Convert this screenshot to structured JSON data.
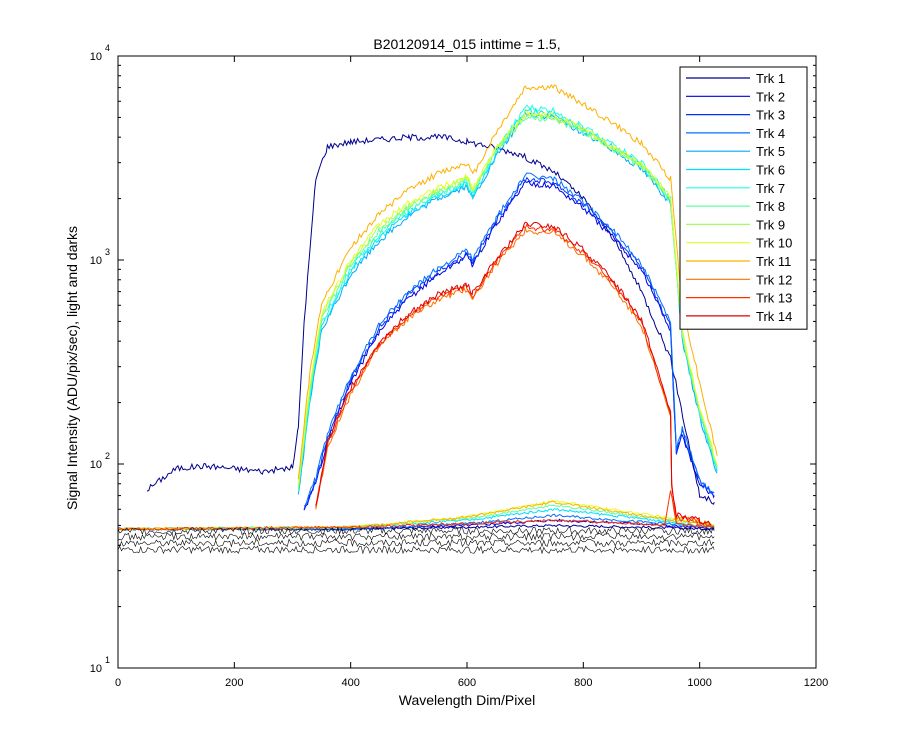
{
  "chart_data": {
    "type": "line",
    "title": "B20120914_015 inttime = 1.5,",
    "xlabel": "Wavelength Dim/Pixel",
    "ylabel": "Signal Intensity (ADU/pix/sec), light and darks",
    "xlim": [
      0,
      1200
    ],
    "ylim": [
      10,
      10000
    ],
    "yscale": "log",
    "grid": false,
    "legend_position": "top-right",
    "xticks": [
      "0",
      "200",
      "400",
      "600",
      "800",
      "1000",
      "1200"
    ],
    "yticks": [
      {
        "base": "10",
        "exp": "1"
      },
      {
        "base": "10",
        "exp": "2"
      },
      {
        "base": "10",
        "exp": "3"
      },
      {
        "base": "10",
        "exp": "4"
      }
    ],
    "series": [
      {
        "name": "Trk 1",
        "color": "#00008f",
        "x": [
          0,
          45,
          50,
          100,
          150,
          200,
          250,
          300,
          310,
          320,
          340,
          360,
          400,
          500,
          560,
          600,
          640,
          690,
          750,
          800,
          850,
          900,
          950,
          1000,
          1025
        ],
        "y": [
          null,
          null,
          75,
          95,
          98,
          95,
          92,
          96,
          150,
          500,
          2500,
          3600,
          3800,
          4000,
          4000,
          3800,
          3600,
          3300,
          2700,
          2000,
          1300,
          700,
          330,
          70,
          65
        ]
      },
      {
        "name": "Trk 2",
        "color": "#0000df",
        "x": [
          0,
          300,
          320,
          340,
          360,
          400,
          450,
          500,
          550,
          600,
          610,
          650,
          700,
          750,
          800,
          850,
          900,
          950,
          960,
          970,
          1000,
          1025
        ],
        "y": [
          null,
          null,
          60,
          80,
          130,
          250,
          450,
          650,
          850,
          1050,
          950,
          1500,
          2400,
          2300,
          1800,
          1300,
          900,
          450,
          110,
          140,
          80,
          70
        ]
      },
      {
        "name": "Trk 3",
        "color": "#0030ff",
        "x": [
          0,
          300,
          320,
          340,
          360,
          400,
          450,
          500,
          550,
          600,
          610,
          650,
          700,
          750,
          800,
          850,
          900,
          950,
          960,
          970,
          1000,
          1025
        ],
        "y": [
          null,
          null,
          60,
          82,
          135,
          260,
          470,
          680,
          880,
          1080,
          980,
          1550,
          2500,
          2400,
          1870,
          1350,
          930,
          470,
          115,
          145,
          82,
          70
        ]
      },
      {
        "name": "Trk 4",
        "color": "#0070ff",
        "x": [
          0,
          300,
          320,
          340,
          360,
          400,
          450,
          500,
          550,
          600,
          610,
          650,
          700,
          750,
          800,
          850,
          900,
          950,
          960,
          970,
          1000,
          1025
        ],
        "y": [
          null,
          null,
          62,
          85,
          140,
          270,
          490,
          700,
          910,
          1120,
          1010,
          1600,
          2600,
          2500,
          1940,
          1400,
          960,
          490,
          118,
          148,
          84,
          72
        ]
      },
      {
        "name": "Trk 5",
        "color": "#00a8ff",
        "x": [
          0,
          300,
          310,
          330,
          350,
          400,
          450,
          500,
          550,
          600,
          610,
          650,
          700,
          750,
          800,
          850,
          900,
          950,
          970,
          1000,
          1030
        ],
        "y": [
          null,
          null,
          70,
          200,
          450,
          850,
          1250,
          1650,
          2000,
          2300,
          2000,
          3200,
          5200,
          5000,
          4200,
          3500,
          2800,
          1900,
          400,
          170,
          90
        ]
      },
      {
        "name": "Trk 6",
        "color": "#00dfff",
        "x": [
          0,
          300,
          310,
          330,
          350,
          400,
          450,
          500,
          550,
          600,
          610,
          650,
          700,
          750,
          800,
          850,
          900,
          950,
          970,
          1000,
          1030
        ],
        "y": [
          null,
          null,
          72,
          210,
          470,
          880,
          1300,
          1700,
          2050,
          2350,
          2050,
          3300,
          5400,
          5200,
          4350,
          3600,
          2900,
          1950,
          410,
          175,
          92
        ]
      },
      {
        "name": "Trk 7",
        "color": "#20ffdf",
        "x": [
          0,
          300,
          310,
          330,
          350,
          400,
          450,
          500,
          550,
          600,
          610,
          650,
          700,
          750,
          800,
          850,
          900,
          950,
          970,
          1000,
          1030
        ],
        "y": [
          null,
          null,
          74,
          220,
          490,
          910,
          1350,
          1750,
          2100,
          2400,
          2100,
          3400,
          5600,
          5400,
          4500,
          3700,
          3000,
          2000,
          420,
          180,
          95
        ]
      },
      {
        "name": "Trk 8",
        "color": "#60ff9f",
        "x": [
          0,
          300,
          310,
          330,
          350,
          400,
          450,
          500,
          550,
          600,
          610,
          650,
          700,
          750,
          800,
          850,
          900,
          950,
          970,
          1000,
          1030
        ],
        "y": [
          null,
          null,
          76,
          230,
          510,
          940,
          1400,
          1800,
          2150,
          2450,
          2150,
          3450,
          5000,
          4900,
          4200,
          3500,
          2850,
          1950,
          420,
          180,
          95
        ]
      },
      {
        "name": "Trk 9",
        "color": "#a0ff60",
        "x": [
          0,
          300,
          310,
          330,
          350,
          400,
          450,
          500,
          550,
          600,
          610,
          650,
          700,
          750,
          800,
          850,
          900,
          950,
          970,
          1000,
          1030
        ],
        "y": [
          null,
          null,
          78,
          240,
          530,
          970,
          1450,
          1850,
          2200,
          2500,
          2200,
          3500,
          5100,
          5000,
          4300,
          3550,
          2900,
          2000,
          430,
          185,
          98
        ]
      },
      {
        "name": "Trk 10",
        "color": "#dfff20",
        "x": [
          0,
          300,
          310,
          330,
          350,
          400,
          450,
          500,
          550,
          600,
          610,
          650,
          700,
          750,
          800,
          850,
          900,
          950,
          970,
          1000,
          1030
        ],
        "y": [
          null,
          null,
          80,
          250,
          550,
          1000,
          1500,
          1900,
          2250,
          2550,
          2250,
          3550,
          5200,
          5100,
          4400,
          3600,
          2950,
          2050,
          440,
          190,
          100
        ]
      },
      {
        "name": "Trk 11",
        "color": "#ffb000",
        "x": [
          0,
          300,
          310,
          330,
          350,
          400,
          450,
          500,
          550,
          600,
          610,
          650,
          700,
          750,
          800,
          850,
          900,
          950,
          970,
          1000,
          1030
        ],
        "y": [
          null,
          null,
          85,
          280,
          620,
          1150,
          1700,
          2200,
          2650,
          3000,
          2600,
          4200,
          7000,
          7000,
          5800,
          4700,
          3700,
          2500,
          600,
          250,
          110
        ]
      },
      {
        "name": "Trk 12",
        "color": "#ff7000",
        "x": [
          0,
          320,
          340,
          360,
          400,
          450,
          500,
          550,
          600,
          610,
          650,
          700,
          750,
          800,
          850,
          900,
          950,
          952,
          960,
          1000,
          1020
        ],
        "y": [
          null,
          null,
          60,
          120,
          220,
          380,
          520,
          640,
          720,
          650,
          950,
          1400,
          1350,
          1050,
          750,
          480,
          170,
          75,
          55,
          52,
          50
        ]
      },
      {
        "name": "Trk 13",
        "color": "#ff3000",
        "x": [
          0,
          320,
          340,
          360,
          400,
          450,
          500,
          550,
          600,
          610,
          650,
          700,
          750,
          800,
          850,
          900,
          950,
          952,
          960,
          1000,
          1020
        ],
        "y": [
          null,
          null,
          61,
          125,
          230,
          390,
          530,
          660,
          740,
          670,
          980,
          1450,
          1400,
          1090,
          780,
          500,
          175,
          76,
          55,
          52,
          50
        ]
      },
      {
        "name": "Trk 14",
        "color": "#df0000",
        "x": [
          0,
          320,
          340,
          360,
          400,
          450,
          500,
          550,
          600,
          610,
          650,
          700,
          750,
          800,
          850,
          900,
          950,
          952,
          960,
          1000,
          1020
        ],
        "y": [
          null,
          null,
          62,
          128,
          235,
          400,
          545,
          675,
          760,
          690,
          1000,
          1500,
          1450,
          1120,
          800,
          515,
          180,
          78,
          56,
          53,
          50
        ]
      }
    ],
    "dark_levels": [
      {
        "color": "#00008f",
        "x": [
          0,
          400,
          600,
          750,
          900,
          1025
        ],
        "y": [
          48,
          48,
          49,
          50,
          49,
          48
        ]
      },
      {
        "color": "#0000df",
        "x": [
          0,
          400,
          600,
          750,
          900,
          1025
        ],
        "y": [
          48,
          48,
          50,
          53,
          51,
          48
        ]
      },
      {
        "color": "#0070ff",
        "x": [
          0,
          400,
          600,
          750,
          900,
          1025
        ],
        "y": [
          48,
          48,
          51,
          56,
          52,
          49
        ]
      },
      {
        "color": "#00dfff",
        "x": [
          0,
          400,
          600,
          750,
          900,
          1025
        ],
        "y": [
          48,
          49,
          53,
          60,
          54,
          49
        ]
      },
      {
        "color": "#60ff9f",
        "x": [
          0,
          400,
          600,
          750,
          900,
          1025
        ],
        "y": [
          48,
          49,
          54,
          63,
          55,
          50
        ]
      },
      {
        "color": "#dfff20",
        "x": [
          0,
          400,
          600,
          750,
          900,
          1025
        ],
        "y": [
          48,
          49,
          55,
          66,
          57,
          50
        ]
      },
      {
        "color": "#ffb000",
        "x": [
          0,
          400,
          600,
          750,
          900,
          1025
        ],
        "y": [
          48,
          49,
          55,
          65,
          56,
          50
        ]
      },
      {
        "color": "#ff3000",
        "x": [
          0,
          400,
          600,
          750,
          900,
          940,
          950,
          960,
          1025
        ],
        "y": [
          48,
          49,
          51,
          53,
          51,
          50,
          75,
          51,
          49
        ]
      },
      {
        "color": "#000000",
        "x": [
          0,
          400,
          600,
          750,
          900,
          1025
        ],
        "y": [
          47,
          47,
          47,
          47,
          47,
          47
        ]
      },
      {
        "color": "#000000",
        "x": [
          0,
          400,
          600,
          750,
          900,
          1025
        ],
        "y": [
          44,
          44,
          44,
          44,
          44,
          44
        ]
      },
      {
        "color": "#000000",
        "x": [
          0,
          400,
          600,
          750,
          900,
          1025
        ],
        "y": [
          41,
          41,
          41,
          41,
          41,
          41
        ]
      },
      {
        "color": "#000000",
        "x": [
          0,
          400,
          600,
          750,
          900,
          1025
        ],
        "y": [
          38,
          38,
          38,
          38,
          38,
          38
        ]
      }
    ]
  }
}
